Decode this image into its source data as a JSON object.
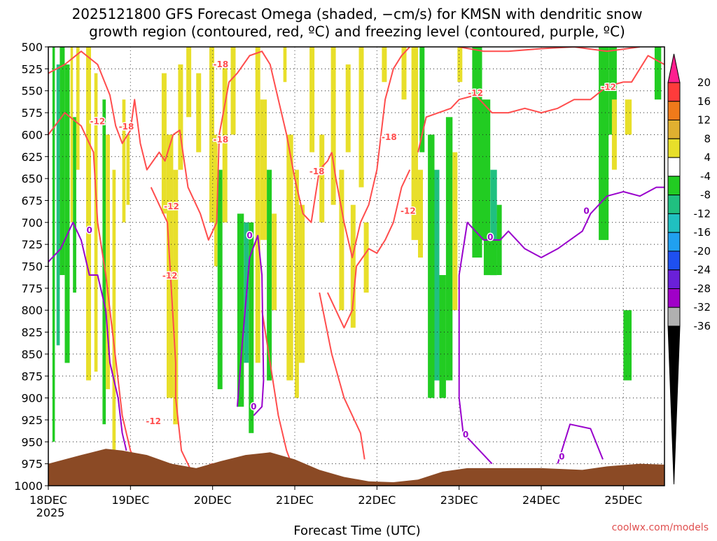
{
  "chart_data": {
    "type": "heatmap",
    "title_lines": [
      "2025121800 GFS Forecast Omega (shaded, −cm/s) for KMSN with dendritic snow",
      "growth region (contoured, red, ºC) and freezing level (contoured, purple, ºC)"
    ],
    "xlabel": "Forecast Time (UTC)",
    "credit": "coolwx.com/models",
    "x_ticks": [
      "18DEC",
      "19DEC",
      "20DEC",
      "21DEC",
      "22DEC",
      "23DEC",
      "24DEC",
      "25DEC"
    ],
    "x_year": "2025",
    "x_range_days": [
      0,
      7.5
    ],
    "y_ticks": [
      "500",
      "525",
      "550",
      "575",
      "600",
      "625",
      "650",
      "675",
      "700",
      "725",
      "750",
      "775",
      "800",
      "825",
      "850",
      "875",
      "900",
      "925",
      "950",
      "975",
      "1000"
    ],
    "y_range": [
      500,
      1000
    ],
    "grid": true,
    "colorbar": {
      "ticks": [
        "20",
        "16",
        "12",
        "8",
        "4",
        "-4",
        "-8",
        "-12",
        "-16",
        "-20",
        "-24",
        "-28",
        "-32",
        "-36"
      ],
      "colors": [
        "#ff3b3b",
        "#f07a1a",
        "#e0b030",
        "#e8df2a",
        "#ffffff",
        "#22cc22",
        "#20c080",
        "#20c0c0",
        "#20a0f0",
        "#1e50f0",
        "#6a20d8",
        "#a000c8",
        "#b0b0b0"
      ],
      "top_cap_color": "#ff1f8f",
      "bottom_cap_color": "#000000"
    },
    "red_contour_labels": [
      "-18",
      "-12",
      "-18",
      "-12",
      "-18",
      "-12",
      "-18",
      "-18",
      "-12",
      "-12",
      "-12",
      "-12"
    ],
    "purple_contour_labels": [
      "0",
      "0",
      "0",
      "0",
      "0",
      "0",
      "0"
    ],
    "colors": {
      "red_contour": "#ff4d4d",
      "purple_contour": "#9900cc",
      "terrain": "#8b4a25",
      "positive_omega": "#e8df2a",
      "negative_omega": "#22cc22"
    }
  }
}
